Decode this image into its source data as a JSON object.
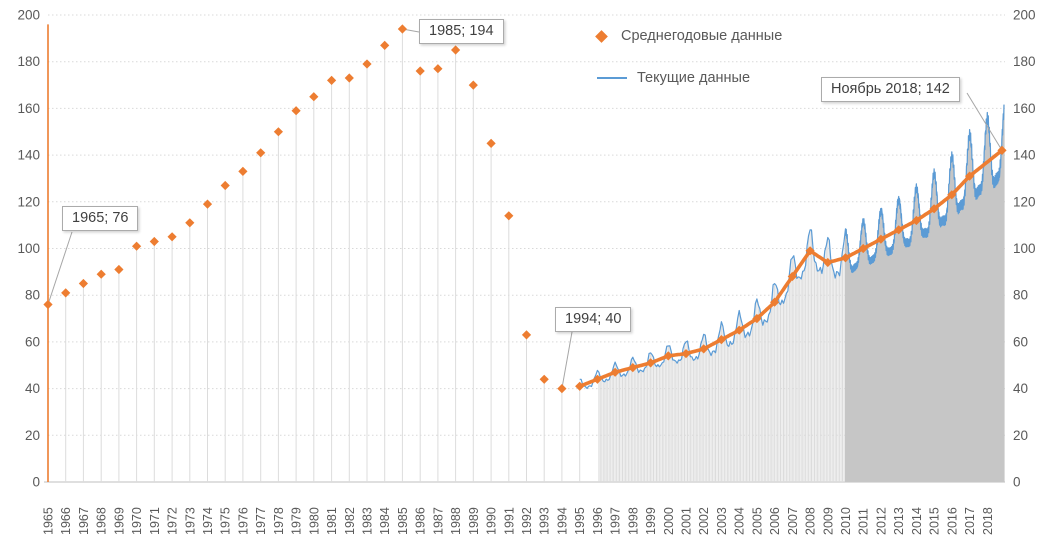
{
  "colors": {
    "accent_orange": "#ED7D31",
    "line_blue": "#5B9BD5",
    "grid": "#D9D9D9",
    "axis_text": "#595959",
    "drop_light": "#DCDCDC",
    "drop_dense": "#C6C6C6",
    "annotation_border": "#ABABAB",
    "leader_line": "#A6A6A6",
    "zero_axis": "#BFBFBF"
  },
  "legend": {
    "items": [
      {
        "label": "Среднегодовые данные",
        "marker": "diamond",
        "color": "#ED7D31"
      },
      {
        "label": "Текущие данные",
        "marker": "line",
        "color": "#5B9BD5"
      }
    ]
  },
  "annotations": [
    {
      "id": "a1965",
      "label": "1965; 76",
      "t": 1965,
      "value": 76
    },
    {
      "id": "a1985",
      "label": "1985; 194",
      "t": 1985,
      "value": 194
    },
    {
      "id": "a1994",
      "label": "1994; 40",
      "t": 1994,
      "value": 40
    },
    {
      "id": "a2018",
      "label": "Ноябрь 2018; 142",
      "t": 2018.83,
      "value": 142
    }
  ],
  "chart_data": {
    "type": "line",
    "title": "",
    "y_axis": {
      "min": 0,
      "max": 200,
      "step": 20,
      "ticks": [
        0,
        20,
        40,
        60,
        80,
        100,
        120,
        140,
        160,
        180,
        200
      ],
      "sides": [
        "left",
        "right"
      ],
      "grid": "dotted"
    },
    "x_ticks": [
      1965,
      1966,
      1967,
      1968,
      1969,
      1970,
      1971,
      1972,
      1973,
      1974,
      1975,
      1976,
      1977,
      1978,
      1979,
      1980,
      1981,
      1982,
      1983,
      1984,
      1985,
      1986,
      1987,
      1988,
      1989,
      1990,
      1991,
      1992,
      1993,
      1994,
      1995,
      1996,
      1997,
      1998,
      1999,
      2000,
      2001,
      2002,
      2003,
      2004,
      2005,
      2006,
      2007,
      2008,
      2009,
      2010,
      2011,
      2012,
      2013,
      2014,
      2015,
      2016,
      2017,
      2018
    ],
    "series": [
      {
        "name": "Среднегодовые данные",
        "type": "scatter",
        "marker": "diamond",
        "color": "#ED7D31",
        "drop_lines": true,
        "years": [
          1965,
          1966,
          1967,
          1968,
          1969,
          1970,
          1971,
          1972,
          1973,
          1974,
          1975,
          1976,
          1977,
          1978,
          1979,
          1980,
          1981,
          1982,
          1983,
          1984,
          1985,
          1986,
          1987,
          1988,
          1989,
          1990,
          1991,
          1992,
          1993,
          1994,
          1995,
          1996,
          1997,
          1998,
          1999,
          2000,
          2001,
          2002,
          2003,
          2004,
          2005,
          2006,
          2007,
          2008,
          2009,
          2010,
          2011,
          2012,
          2013,
          2014,
          2015,
          2016,
          2017,
          2018
        ],
        "values": [
          76,
          81,
          85,
          89,
          91,
          101,
          103,
          105,
          111,
          119,
          127,
          133,
          141,
          150,
          159,
          165,
          172,
          173,
          179,
          187,
          194,
          176,
          177,
          185,
          170,
          145,
          114,
          63,
          44,
          40,
          41,
          44,
          47,
          49,
          51,
          54,
          55,
          57,
          61,
          65,
          70,
          77,
          88,
          99,
          94,
          96,
          100,
          104,
          108,
          112,
          117,
          123,
          131,
          142
        ],
        "trend_line_from": 1995,
        "final_t": 2018.83
      },
      {
        "name": "Текущие данные",
        "type": "line",
        "color": "#5B9BD5",
        "start": 1995,
        "end": 2018.95,
        "dense_drop_lines_from": 1996,
        "amplitude": {
          "years": [
            1995,
            2000,
            2005,
            2008,
            2010,
            2013,
            2016,
            2019
          ],
          "values": [
            3,
            5,
            8,
            10,
            11,
            13,
            16,
            20
          ]
        }
      }
    ]
  }
}
